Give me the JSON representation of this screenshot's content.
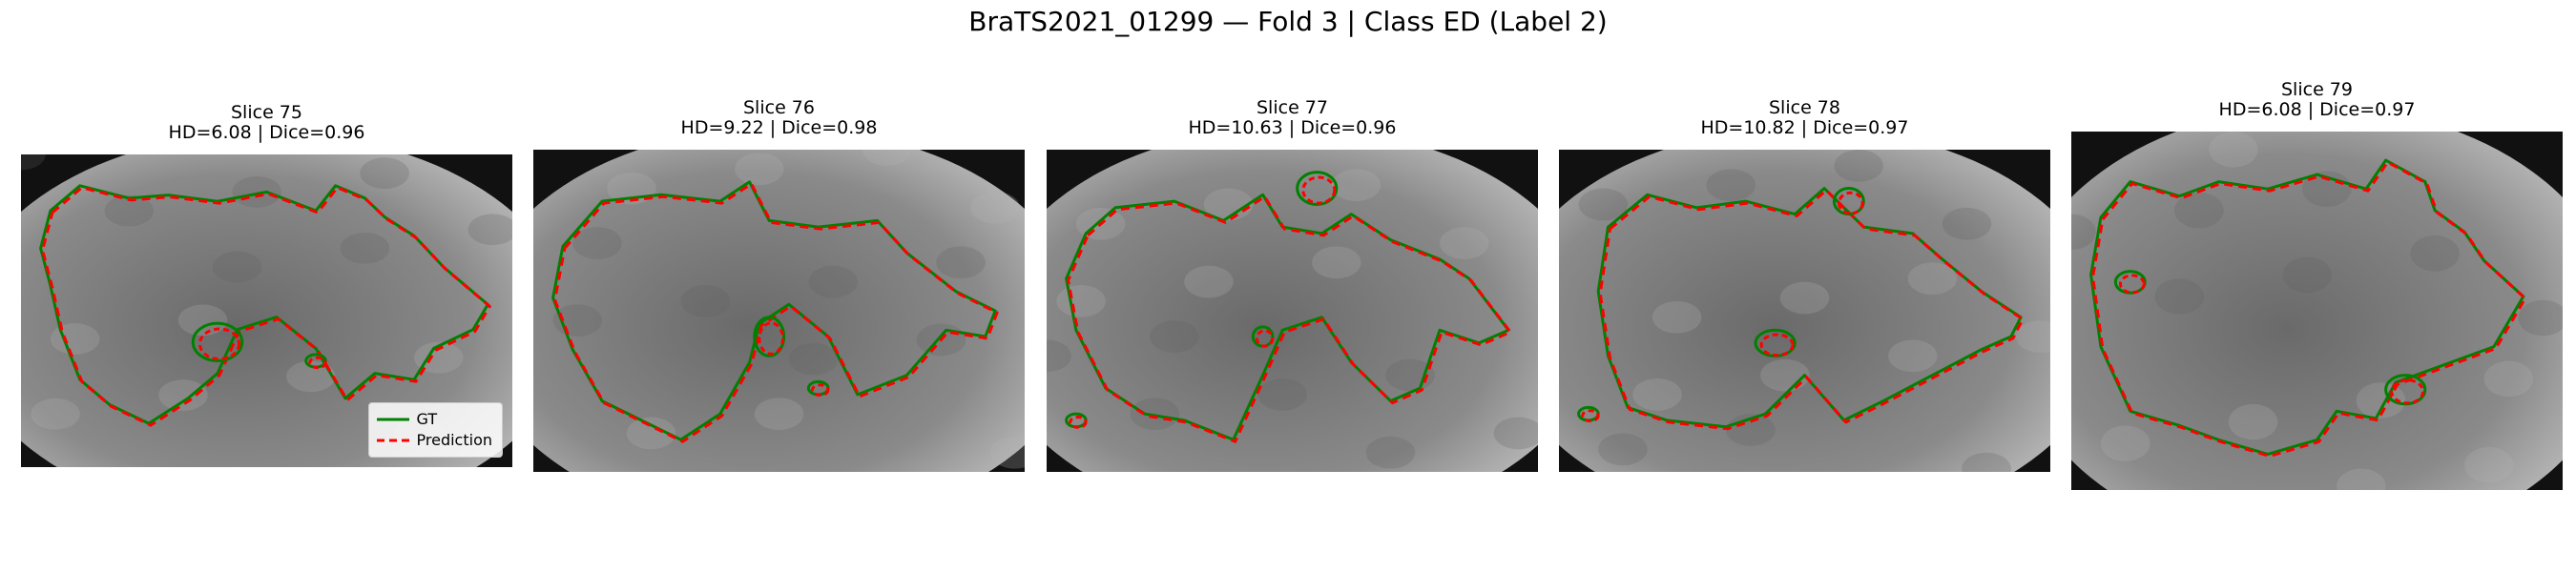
{
  "figure": {
    "title": "BraTS2021_01299 — Fold 3 | Class ED (Label 2)"
  },
  "panels": [
    {
      "slice": "Slice 75",
      "metrics": "HD=6.08 | Dice=0.96",
      "show_legend": true
    },
    {
      "slice": "Slice 76",
      "metrics": "HD=9.22 | Dice=0.98",
      "show_legend": false
    },
    {
      "slice": "Slice 77",
      "metrics": "HD=10.63 | Dice=0.96",
      "show_legend": false
    },
    {
      "slice": "Slice 78",
      "metrics": "HD=10.82 | Dice=0.97",
      "show_legend": false
    },
    {
      "slice": "Slice 79",
      "metrics": "HD=6.08 | Dice=0.97",
      "show_legend": false
    }
  ],
  "legend": {
    "gt_label": "GT",
    "pred_label": "Prediction"
  },
  "colors": {
    "gt": "#008000",
    "prediction": "#ff0000",
    "brain_light": "#cfcfcf",
    "brain_dark": "#6a6a6a",
    "background": "#111111"
  }
}
